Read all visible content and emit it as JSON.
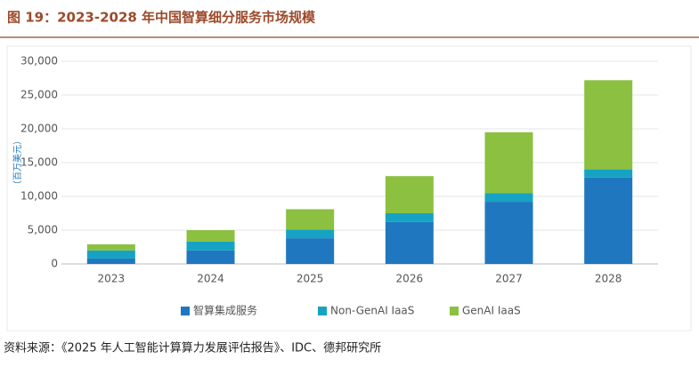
{
  "chart_data": {
    "type": "stacked_bar",
    "title": "图 19：2023-2028 年中国智算细分服务市场规模",
    "ylabel": "（百万美元）",
    "source": "资料来源：《2025 年人工智能计算算力发展评估报告》、IDC、德邦研究所",
    "categories": [
      "2023",
      "2024",
      "2025",
      "2026",
      "2027",
      "2028"
    ],
    "series": [
      {
        "name": "智算集成服务",
        "color": "#1f77c0",
        "values": [
          800,
          2000,
          3800,
          6200,
          9200,
          12800
        ]
      },
      {
        "name": "Non-GenAI IaaS",
        "color": "#16a3c3",
        "values": [
          1200,
          1300,
          1300,
          1300,
          1300,
          1200
        ]
      },
      {
        "name": "GenAI IaaS",
        "color": "#8cc040",
        "values": [
          900,
          1700,
          3000,
          5500,
          9000,
          13200
        ]
      }
    ],
    "ylim": [
      0,
      30000
    ],
    "yticks": [
      0,
      {
        "value": 5000,
        "label": "5,000"
      },
      {
        "value": 10000,
        "label": "10,000"
      },
      {
        "value": 15000,
        "label": "15,000"
      },
      {
        "value": 20000,
        "label": "20,000"
      },
      {
        "value": 25000,
        "label": "25,000"
      },
      {
        "value": 30000,
        "label": "30,000"
      }
    ],
    "grid": true
  }
}
